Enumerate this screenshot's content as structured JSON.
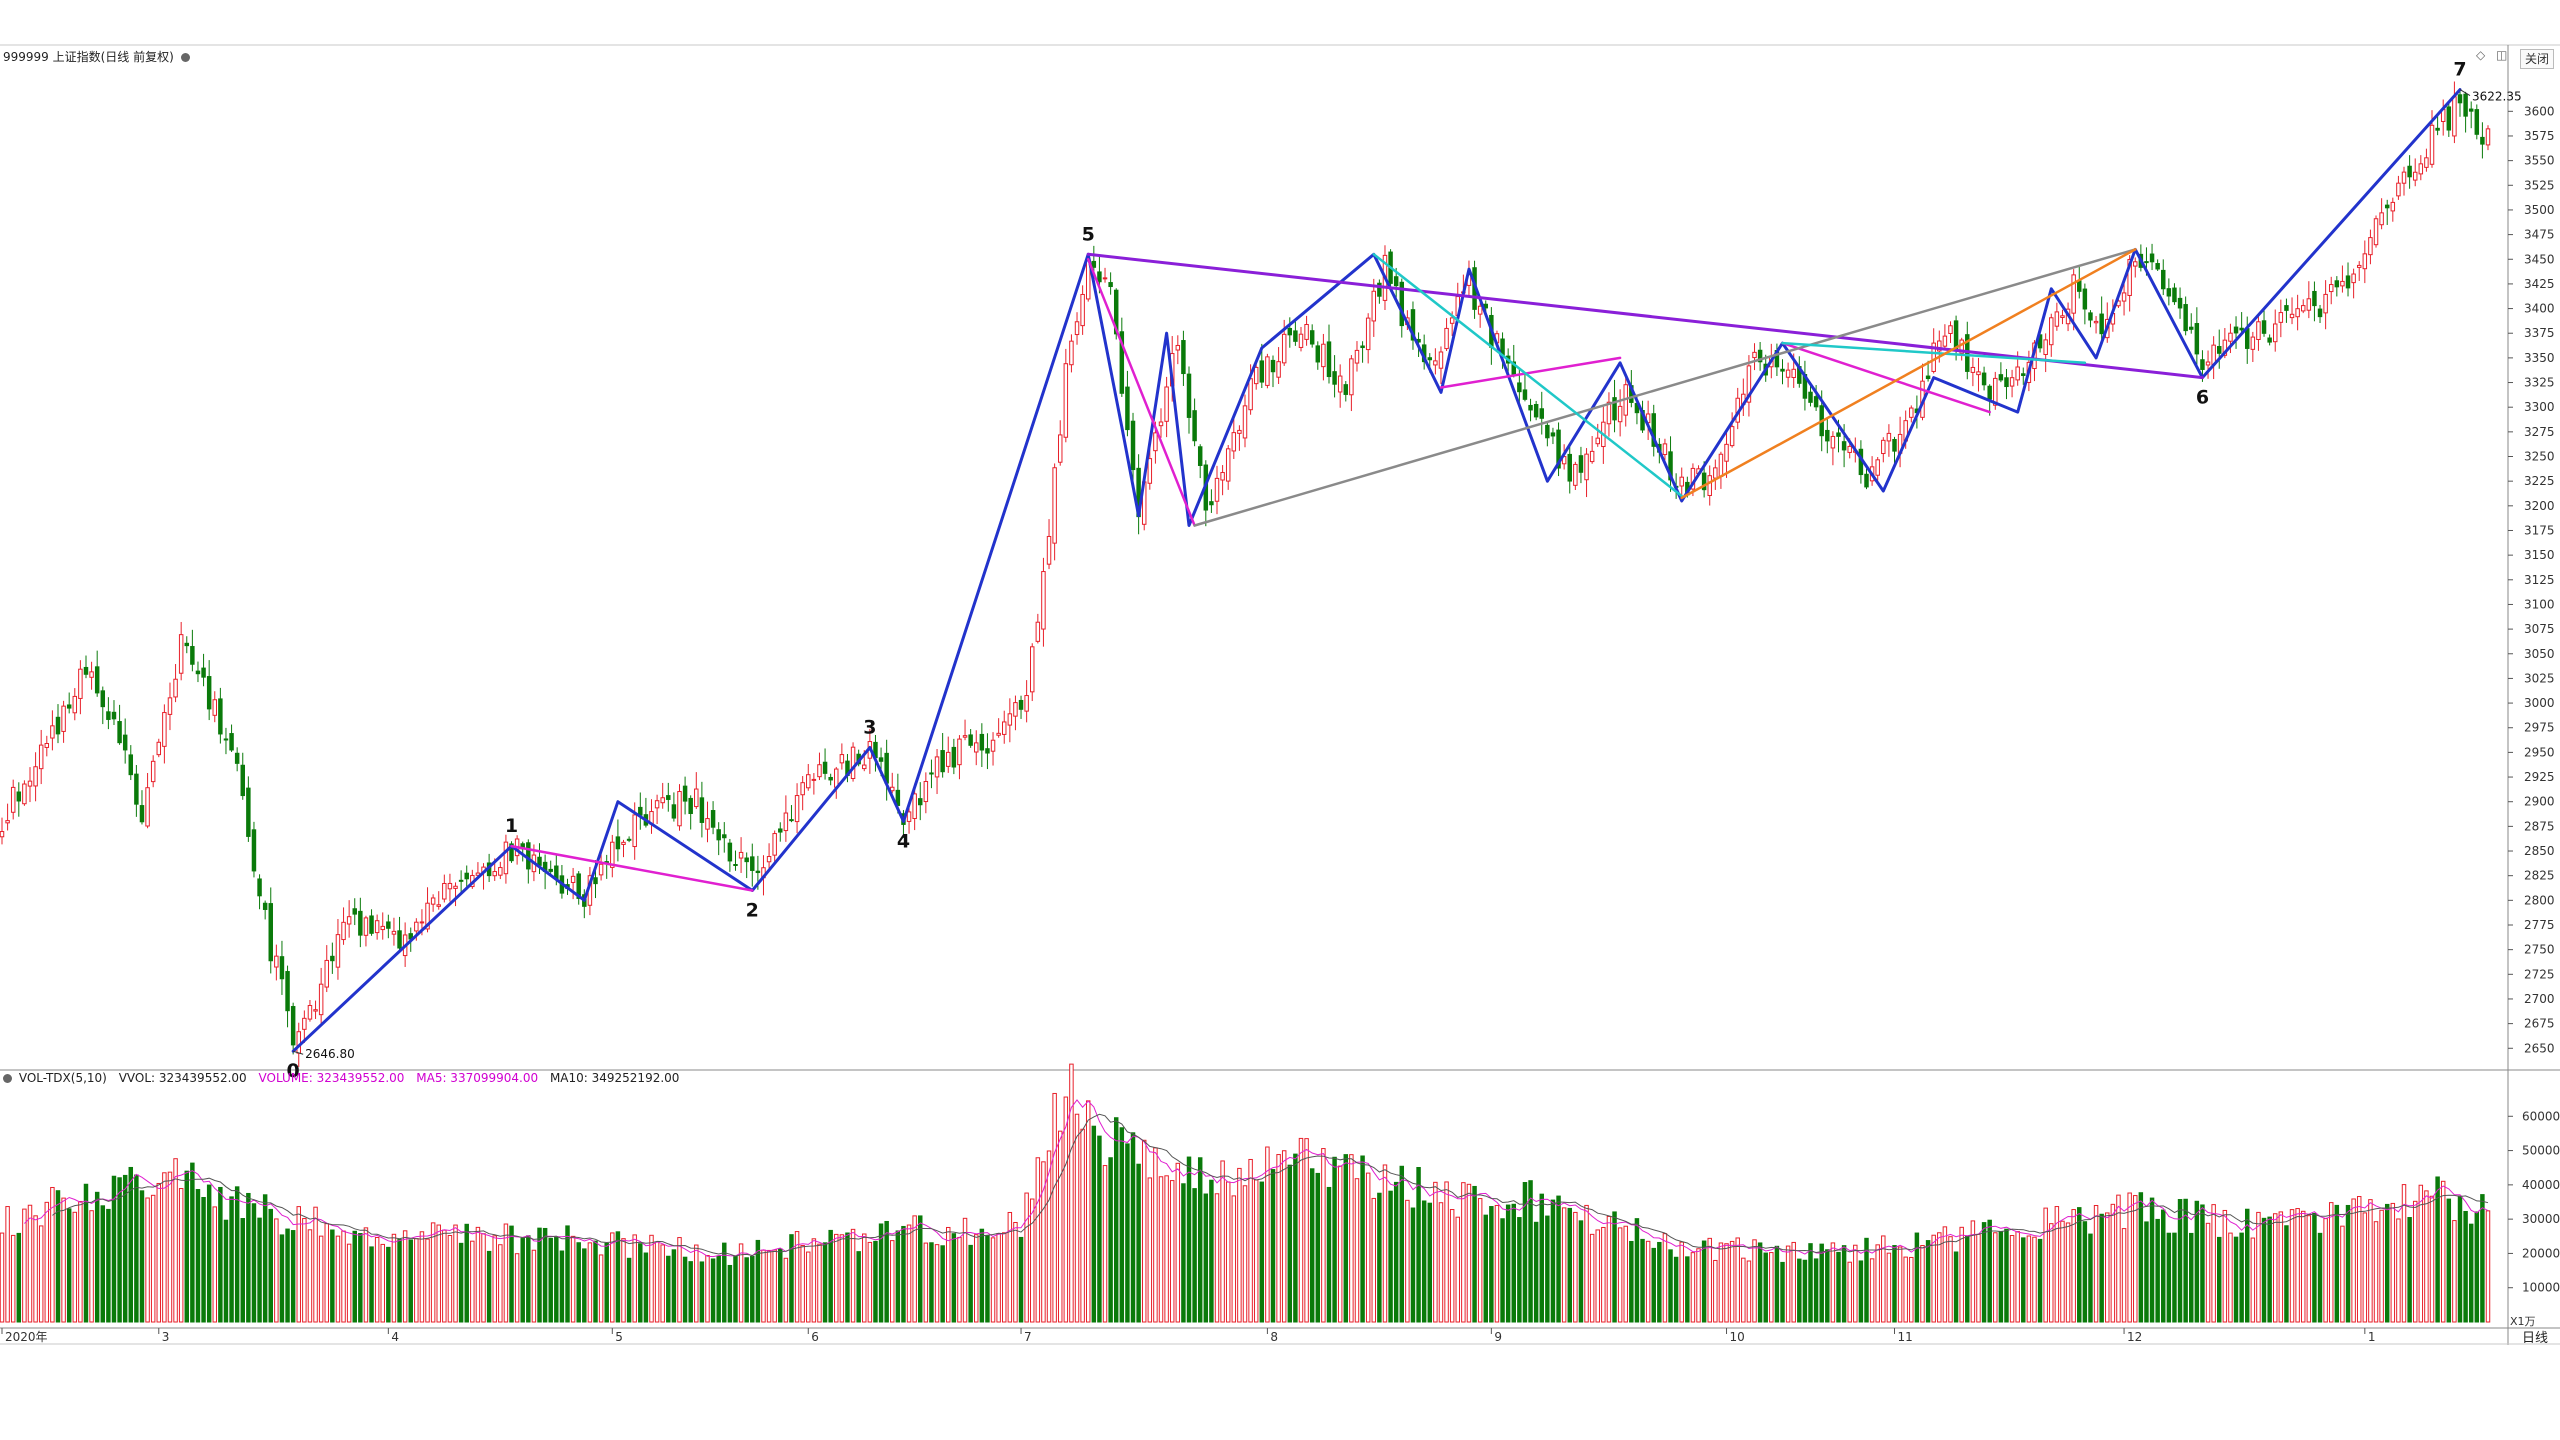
{
  "header": {
    "title": "999999 上证指数(日线 前复权)",
    "close_label": "关闭"
  },
  "volume_header": {
    "name": "VOL-TDX(5,10)",
    "vvol": "VVOL: 323439552.00",
    "volume": "VOLUME: 323439552.00",
    "ma5": "MA5: 337099904.00",
    "ma10": "MA10: 349252192.00",
    "colors": {
      "name": "#222222",
      "vvol": "#222222",
      "volume": "#d000d0",
      "ma5": "#d000d0",
      "ma10": "#222222"
    }
  },
  "footer": {
    "period": "日线",
    "vol_unit": "X1万"
  },
  "chart_data": {
    "type": "candlestick",
    "price_axis": {
      "ticks": [
        2650,
        2675,
        2700,
        2725,
        2750,
        2775,
        2800,
        2825,
        2850,
        2875,
        2900,
        2925,
        2950,
        2975,
        3000,
        3025,
        3050,
        3075,
        3100,
        3125,
        3150,
        3175,
        3200,
        3225,
        3250,
        3275,
        3300,
        3325,
        3350,
        3375,
        3400,
        3425,
        3450,
        3475,
        3500,
        3525,
        3550,
        3575,
        3600
      ],
      "ylim": [
        2630,
        3650
      ]
    },
    "volume_axis": {
      "ticks": [
        10000,
        20000,
        30000,
        40000,
        50000,
        60000
      ],
      "ylim": [
        0,
        70000
      ]
    },
    "x_labels": [
      {
        "i": 0,
        "t": "2020年"
      },
      {
        "i": 28,
        "t": "3"
      },
      {
        "i": 69,
        "t": "4"
      },
      {
        "i": 109,
        "t": "5"
      },
      {
        "i": 144,
        "t": "6"
      },
      {
        "i": 182,
        "t": "7"
      },
      {
        "i": 226,
        "t": "8"
      },
      {
        "i": 266,
        "t": "9"
      },
      {
        "i": 308,
        "t": "10"
      },
      {
        "i": 338,
        "t": "11"
      },
      {
        "i": 379,
        "t": "12"
      },
      {
        "i": 422,
        "t": "1"
      }
    ],
    "n_bars": 445,
    "anchors": [
      {
        "i": 0,
        "p": 2880
      },
      {
        "i": 8,
        "p": 2960
      },
      {
        "i": 15,
        "p": 3030
      },
      {
        "i": 20,
        "p": 2980
      },
      {
        "i": 25,
        "p": 2880
      },
      {
        "i": 32,
        "p": 3060
      },
      {
        "i": 38,
        "p": 2990
      },
      {
        "i": 42,
        "p": 2940
      },
      {
        "i": 46,
        "p": 2800
      },
      {
        "i": 52,
        "p": 2660
      },
      {
        "i": 56,
        "p": 2700
      },
      {
        "i": 62,
        "p": 2780
      },
      {
        "i": 70,
        "p": 2760
      },
      {
        "i": 80,
        "p": 2810
      },
      {
        "i": 91,
        "p": 2855
      },
      {
        "i": 98,
        "p": 2830
      },
      {
        "i": 104,
        "p": 2800
      },
      {
        "i": 110,
        "p": 2860
      },
      {
        "i": 115,
        "p": 2890
      },
      {
        "i": 124,
        "p": 2900
      },
      {
        "i": 134,
        "p": 2820
      },
      {
        "i": 144,
        "p": 2920
      },
      {
        "i": 155,
        "p": 2950
      },
      {
        "i": 161,
        "p": 2880
      },
      {
        "i": 168,
        "p": 2940
      },
      {
        "i": 178,
        "p": 2970
      },
      {
        "i": 183,
        "p": 3000
      },
      {
        "i": 187,
        "p": 3180
      },
      {
        "i": 190,
        "p": 3330
      },
      {
        "i": 194,
        "p": 3440
      },
      {
        "i": 198,
        "p": 3410
      },
      {
        "i": 203,
        "p": 3200
      },
      {
        "i": 210,
        "p": 3370
      },
      {
        "i": 215,
        "p": 3190
      },
      {
        "i": 224,
        "p": 3330
      },
      {
        "i": 232,
        "p": 3380
      },
      {
        "i": 240,
        "p": 3320
      },
      {
        "i": 247,
        "p": 3440
      },
      {
        "i": 254,
        "p": 3340
      },
      {
        "i": 262,
        "p": 3420
      },
      {
        "i": 270,
        "p": 3330
      },
      {
        "i": 280,
        "p": 3230
      },
      {
        "i": 290,
        "p": 3320
      },
      {
        "i": 300,
        "p": 3220
      },
      {
        "i": 306,
        "p": 3230
      },
      {
        "i": 312,
        "p": 3340
      },
      {
        "i": 318,
        "p": 3350
      },
      {
        "i": 325,
        "p": 3280
      },
      {
        "i": 333,
        "p": 3230
      },
      {
        "i": 340,
        "p": 3280
      },
      {
        "i": 347,
        "p": 3380
      },
      {
        "i": 355,
        "p": 3320
      },
      {
        "i": 364,
        "p": 3360
      },
      {
        "i": 370,
        "p": 3420
      },
      {
        "i": 376,
        "p": 3380
      },
      {
        "i": 381,
        "p": 3450
      },
      {
        "i": 388,
        "p": 3410
      },
      {
        "i": 393,
        "p": 3350
      },
      {
        "i": 402,
        "p": 3370
      },
      {
        "i": 410,
        "p": 3390
      },
      {
        "i": 418,
        "p": 3420
      },
      {
        "i": 424,
        "p": 3490
      },
      {
        "i": 432,
        "p": 3560
      },
      {
        "i": 439,
        "p": 3610
      },
      {
        "i": 444,
        "p": 3570
      }
    ],
    "volume_anchors": [
      {
        "i": 0,
        "v": 28000
      },
      {
        "i": 15,
        "v": 38000
      },
      {
        "i": 30,
        "v": 42000
      },
      {
        "i": 50,
        "v": 30000
      },
      {
        "i": 70,
        "v": 25000
      },
      {
        "i": 100,
        "v": 24000
      },
      {
        "i": 130,
        "v": 20000
      },
      {
        "i": 160,
        "v": 26000
      },
      {
        "i": 182,
        "v": 28000
      },
      {
        "i": 186,
        "v": 50000
      },
      {
        "i": 190,
        "v": 66000
      },
      {
        "i": 200,
        "v": 50000
      },
      {
        "i": 215,
        "v": 40000
      },
      {
        "i": 235,
        "v": 48000
      },
      {
        "i": 255,
        "v": 38000
      },
      {
        "i": 275,
        "v": 35000
      },
      {
        "i": 300,
        "v": 22000
      },
      {
        "i": 320,
        "v": 20000
      },
      {
        "i": 340,
        "v": 22000
      },
      {
        "i": 360,
        "v": 28000
      },
      {
        "i": 380,
        "v": 33000
      },
      {
        "i": 400,
        "v": 28000
      },
      {
        "i": 420,
        "v": 32000
      },
      {
        "i": 432,
        "v": 38000
      },
      {
        "i": 444,
        "v": 32000
      }
    ],
    "waves": [
      {
        "name": "primary",
        "color": "#2233cc",
        "width": 3,
        "points": [
          [
            52,
            2647
          ],
          [
            91,
            2855
          ],
          [
            104,
            2800
          ],
          [
            110,
            2900
          ],
          [
            134,
            2810
          ],
          [
            155,
            2955
          ],
          [
            161,
            2880
          ],
          [
            194,
            3455
          ],
          [
            200,
            3280
          ],
          [
            203,
            3190
          ],
          [
            208,
            3375
          ],
          [
            212,
            3180
          ],
          [
            225,
            3360
          ],
          [
            245,
            3455
          ],
          [
            257,
            3315
          ],
          [
            262,
            3440
          ],
          [
            276,
            3225
          ],
          [
            289,
            3345
          ],
          [
            300,
            3205
          ],
          [
            318,
            3365
          ],
          [
            336,
            3215
          ],
          [
            345,
            3330
          ],
          [
            360,
            3295
          ],
          [
            366,
            3420
          ],
          [
            374,
            3350
          ],
          [
            381,
            3460
          ],
          [
            393,
            3330
          ],
          [
            439,
            3622
          ]
        ]
      },
      {
        "name": "line-5-6",
        "color": "#8a1fd8",
        "width": 3,
        "points": [
          [
            194,
            3455
          ],
          [
            393,
            3330
          ]
        ]
      },
      {
        "name": "magenta-1",
        "color": "#e020d0",
        "width": 2.5,
        "points": [
          [
            91,
            2855
          ],
          [
            134,
            2810
          ]
        ]
      },
      {
        "name": "magenta-2",
        "color": "#e020d0",
        "width": 2.5,
        "points": [
          [
            194,
            3450
          ],
          [
            213,
            3180
          ]
        ]
      },
      {
        "name": "magenta-3",
        "color": "#e020d0",
        "width": 2.5,
        "points": [
          [
            257,
            3320
          ],
          [
            289,
            3350
          ]
        ]
      },
      {
        "name": "magenta-4",
        "color": "#e020d0",
        "width": 2.5,
        "points": [
          [
            318,
            3365
          ],
          [
            355,
            3295
          ]
        ]
      },
      {
        "name": "gray",
        "color": "#8a8a8a",
        "width": 2.5,
        "points": [
          [
            213,
            3180
          ],
          [
            381,
            3460
          ]
        ]
      },
      {
        "name": "cyan-1",
        "color": "#20c8c8",
        "width": 2.5,
        "points": [
          [
            245,
            3455
          ],
          [
            300,
            3210
          ]
        ]
      },
      {
        "name": "cyan-2",
        "color": "#20c8c8",
        "width": 2.5,
        "points": [
          [
            318,
            3365
          ],
          [
            372,
            3345
          ]
        ]
      },
      {
        "name": "orange",
        "color": "#f08020",
        "width": 2.5,
        "points": [
          [
            300,
            3208
          ],
          [
            381,
            3460
          ]
        ]
      }
    ],
    "wave_labels": [
      {
        "t": "0",
        "i": 52,
        "p": 2647,
        "pos": "below"
      },
      {
        "t": "1",
        "i": 91,
        "p": 2855,
        "pos": "above"
      },
      {
        "t": "2",
        "i": 134,
        "p": 2810,
        "pos": "below"
      },
      {
        "t": "3",
        "i": 155,
        "p": 2955,
        "pos": "above"
      },
      {
        "t": "4",
        "i": 161,
        "p": 2880,
        "pos": "below"
      },
      {
        "t": "5",
        "i": 194,
        "p": 3455,
        "pos": "above"
      },
      {
        "t": "6",
        "i": 393,
        "p": 3330,
        "pos": "below"
      },
      {
        "t": "7",
        "i": 439,
        "p": 3622,
        "pos": "above"
      }
    ],
    "annotations": [
      {
        "t": "2646.80",
        "i": 52,
        "p": 2647
      },
      {
        "t": "3622.35",
        "i": 439,
        "p": 3622
      }
    ],
    "colors": {
      "up": "#e8202a",
      "down": "#0a7a0a",
      "ma5": "#e020d0",
      "ma10": "#555555",
      "grid": "#888888"
    }
  }
}
